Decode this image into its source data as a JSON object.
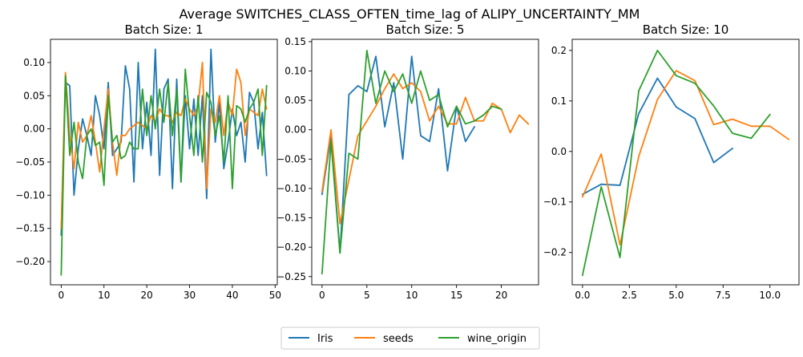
{
  "figure": {
    "suptitle": "Average SWITCHES_CLASS_OFTEN_time_lag of ALIPY_UNCERTAINTY_MM"
  },
  "legend": {
    "placement": "bottom-center",
    "entries": [
      {
        "name": "Iris",
        "color": "#1f77b4"
      },
      {
        "name": "seeds",
        "color": "#ff7f0e"
      },
      {
        "name": "wine_origin",
        "color": "#2ca02c"
      }
    ]
  },
  "chart_data": [
    {
      "type": "line",
      "title": "Batch Size: 1",
      "xlabel": "",
      "ylabel": "",
      "xlim": [
        -2.5,
        50.5
      ],
      "ylim": [
        -0.235,
        0.135
      ],
      "xticks": [
        0,
        10,
        20,
        30,
        40,
        50
      ],
      "xtick_labels": [
        "0",
        "10",
        "20",
        "30",
        "40",
        "50"
      ],
      "yticks": [
        -0.2,
        -0.15,
        -0.1,
        -0.05,
        0.0,
        0.05,
        0.1
      ],
      "ytick_labels": [
        "−0.20",
        "−0.15",
        "−0.10",
        "−0.05",
        "0.00",
        "0.05",
        "0.10"
      ],
      "grid": false,
      "series": [
        {
          "name": "Iris",
          "color": "#1f77b4",
          "x": [
            0,
            1,
            2,
            3,
            4,
            5,
            6,
            7,
            8,
            9,
            10,
            11,
            12,
            13,
            14,
            15,
            16,
            17,
            18,
            19,
            20,
            21,
            22,
            23,
            24,
            25,
            26,
            27,
            28,
            29,
            30,
            31,
            32,
            33,
            34,
            35,
            36,
            37,
            38,
            39,
            40,
            41,
            42,
            43,
            44,
            45,
            46,
            47,
            48
          ],
          "y": [
            -0.16,
            0.07,
            0.065,
            -0.1,
            -0.03,
            0.015,
            -0.01,
            -0.04,
            0.05,
            0.02,
            -0.03,
            0.07,
            -0.04,
            -0.03,
            -0.02,
            0.095,
            0.06,
            -0.08,
            0.1,
            -0.03,
            0.04,
            -0.04,
            0.12,
            -0.07,
            0.06,
            0.075,
            -0.09,
            0.075,
            -0.08,
            0.05,
            -0.03,
            0.045,
            -0.04,
            0.05,
            -0.105,
            0.12,
            -0.02,
            0.04,
            -0.06,
            -0.02,
            0.03,
            -0.01,
            0.01,
            -0.05,
            0.055,
            0.04,
            -0.03,
            0.025,
            -0.07
          ]
        },
        {
          "name": "seeds",
          "color": "#ff7f0e",
          "x": [
            0,
            1,
            2,
            3,
            4,
            5,
            6,
            7,
            8,
            9,
            10,
            11,
            12,
            13,
            14,
            15,
            16,
            17,
            18,
            19,
            20,
            21,
            22,
            23,
            24,
            25,
            26,
            27,
            28,
            29,
            30,
            31,
            32,
            33,
            34,
            35,
            36,
            37,
            38,
            39,
            40,
            41,
            42,
            43,
            44,
            45,
            46,
            47,
            48
          ],
          "y": [
            -0.15,
            0.085,
            -0.01,
            -0.06,
            0.01,
            -0.02,
            -0.01,
            0.02,
            -0.02,
            -0.065,
            0.0,
            0.06,
            -0.02,
            -0.07,
            -0.01,
            -0.01,
            0.0,
            0.005,
            0.01,
            0.005,
            0.0,
            0.02,
            0.01,
            0.03,
            0.02,
            0.02,
            0.01,
            0.025,
            0.02,
            0.045,
            0.03,
            0.02,
            0.035,
            0.1,
            -0.09,
            0.03,
            0.01,
            0.05,
            -0.01,
            0.04,
            0.02,
            0.09,
            0.07,
            -0.01,
            0.03,
            0.025,
            0.02,
            0.06,
            0.03
          ]
        },
        {
          "name": "wine_origin",
          "color": "#2ca02c",
          "x": [
            0,
            1,
            2,
            3,
            4,
            5,
            6,
            7,
            8,
            9,
            10,
            11,
            12,
            13,
            14,
            15,
            16,
            17,
            18,
            19,
            20,
            21,
            22,
            23,
            24,
            25,
            26,
            27,
            28,
            29,
            30,
            31,
            32,
            33,
            34,
            35,
            36,
            37,
            38,
            39,
            40,
            41,
            42,
            43,
            44,
            45,
            46,
            47,
            48
          ],
          "y": [
            -0.22,
            0.08,
            -0.04,
            0.01,
            -0.05,
            -0.075,
            -0.01,
            0.0,
            -0.025,
            -0.02,
            -0.085,
            0.05,
            -0.02,
            -0.01,
            -0.045,
            -0.04,
            -0.02,
            -0.03,
            -0.03,
            0.06,
            -0.01,
            0.05,
            0.0,
            0.06,
            0.01,
            0.07,
            -0.01,
            0.06,
            -0.08,
            0.09,
            0.02,
            -0.04,
            0.05,
            -0.05,
            0.055,
            0.04,
            -0.01,
            0.02,
            -0.05,
            0.05,
            -0.09,
            0.035,
            0.03,
            0.01,
            0.03,
            0.04,
            0.06,
            -0.04,
            0.065
          ]
        }
      ]
    },
    {
      "type": "line",
      "title": "Batch Size: 5",
      "xlabel": "",
      "ylabel": "",
      "xlim": [
        -1.15,
        24.15
      ],
      "ylim": [
        -0.264,
        0.154
      ],
      "xticks": [
        0,
        5,
        10,
        15,
        20
      ],
      "xtick_labels": [
        "0",
        "5",
        "10",
        "15",
        "20"
      ],
      "yticks": [
        -0.25,
        -0.2,
        -0.15,
        -0.1,
        -0.05,
        0.0,
        0.05,
        0.1,
        0.15
      ],
      "ytick_labels": [
        "−0.25",
        "−0.20",
        "−0.15",
        "−0.10",
        "−0.05",
        "0.00",
        "0.05",
        "0.10",
        "0.15"
      ],
      "grid": false,
      "series": [
        {
          "name": "Iris",
          "color": "#1f77b4",
          "x": [
            0,
            1,
            2,
            3,
            4,
            5,
            6,
            7,
            8,
            9,
            10,
            11,
            12,
            13,
            14,
            15,
            16,
            17
          ],
          "y": [
            -0.11,
            -0.01,
            -0.21,
            0.06,
            0.075,
            0.065,
            0.125,
            0.005,
            0.08,
            -0.05,
            0.125,
            -0.01,
            -0.02,
            0.07,
            -0.07,
            0.04,
            -0.02,
            0.005
          ]
        },
        {
          "name": "seeds",
          "color": "#ff7f0e",
          "x": [
            0,
            1,
            2,
            3,
            4,
            5,
            6,
            7,
            8,
            9,
            10,
            11,
            12,
            13,
            14,
            15,
            16,
            17,
            18,
            19,
            20,
            21,
            22,
            23
          ],
          "y": [
            -0.105,
            0.0,
            -0.16,
            -0.085,
            -0.01,
            0.015,
            0.04,
            0.07,
            0.095,
            0.07,
            0.08,
            0.065,
            0.015,
            0.04,
            0.01,
            0.01,
            0.055,
            0.015,
            0.015,
            0.045,
            0.035,
            -0.005,
            0.025,
            0.01
          ]
        },
        {
          "name": "wine_origin",
          "color": "#2ca02c",
          "x": [
            0,
            1,
            2,
            3,
            4,
            5,
            6,
            7,
            8,
            9,
            10,
            11,
            12,
            13,
            14,
            15,
            16,
            17,
            18,
            19,
            20
          ],
          "y": [
            -0.245,
            -0.02,
            -0.21,
            -0.04,
            -0.05,
            0.135,
            0.045,
            0.1,
            0.065,
            0.095,
            0.045,
            0.1,
            0.05,
            0.06,
            0.005,
            0.04,
            0.01,
            0.015,
            0.025,
            0.04,
            0.035
          ]
        }
      ]
    },
    {
      "type": "line",
      "title": "Batch Size: 10",
      "xlabel": "",
      "ylabel": "",
      "xlim": [
        -0.55,
        11.55
      ],
      "ylim": [
        -0.264,
        0.222
      ],
      "xticks": [
        0,
        2.5,
        5,
        7.5,
        10
      ],
      "xtick_labels": [
        "0.0",
        "2.5",
        "5.0",
        "7.5",
        "10.0"
      ],
      "yticks": [
        -0.2,
        -0.1,
        0.0,
        0.1,
        0.2
      ],
      "ytick_labels": [
        "−0.2",
        "−0.1",
        "0.0",
        "0.1",
        "0.2"
      ],
      "grid": false,
      "series": [
        {
          "name": "Iris",
          "color": "#1f77b4",
          "x": [
            0,
            1,
            2,
            3,
            4,
            5,
            6,
            7,
            8
          ],
          "y": [
            -0.085,
            -0.065,
            -0.067,
            0.075,
            0.145,
            0.088,
            0.065,
            -0.022,
            0.006
          ]
        },
        {
          "name": "seeds",
          "color": "#ff7f0e",
          "x": [
            0,
            1,
            2,
            3,
            4,
            5,
            6,
            7,
            8,
            9,
            10,
            11
          ],
          "y": [
            -0.09,
            -0.005,
            -0.185,
            -0.01,
            0.103,
            0.16,
            0.14,
            0.053,
            0.064,
            0.05,
            0.05,
            0.024
          ]
        },
        {
          "name": "wine_origin",
          "color": "#2ca02c",
          "x": [
            0,
            1,
            2,
            3,
            4,
            5,
            6,
            7,
            8,
            9,
            10
          ],
          "y": [
            -0.245,
            -0.07,
            -0.21,
            0.12,
            0.2,
            0.15,
            0.135,
            0.09,
            0.036,
            0.026,
            0.073
          ]
        }
      ]
    }
  ]
}
